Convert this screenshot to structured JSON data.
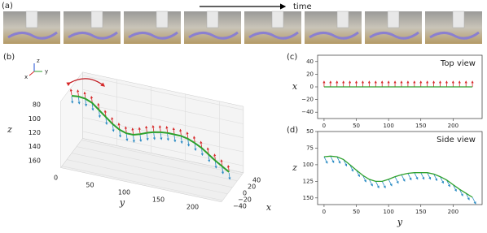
{
  "figure": {
    "panel_labels": [
      "(a)",
      "(b)",
      "(c)",
      "(d)"
    ],
    "time_label": "time",
    "orientation_labels": [
      "z",
      "y",
      "x"
    ]
  },
  "chart_data": [
    {
      "type": "line3d",
      "xlabel": "x",
      "ylabel": "y",
      "zlabel": "z",
      "color": "#2ca02c",
      "y": [
        0,
        10,
        20,
        30,
        40,
        50,
        60,
        70,
        80,
        90,
        100,
        110,
        120,
        130,
        140,
        150,
        160,
        170,
        180,
        190,
        200,
        210,
        220,
        230
      ],
      "x": [
        0,
        0,
        0,
        0,
        0,
        0,
        0,
        0,
        0,
        0,
        0,
        0,
        0,
        0,
        0,
        0,
        0,
        0,
        0,
        0,
        0,
        0,
        0,
        0
      ],
      "z": [
        88,
        87,
        88,
        92,
        100,
        108,
        116,
        122,
        125,
        125,
        122,
        118,
        115,
        113,
        112,
        112,
        112,
        114,
        118,
        123,
        130,
        137,
        143,
        149
      ],
      "xlim": [
        -45,
        45
      ],
      "xticks": [
        {
          "value": -40,
          "label": "−40"
        },
        {
          "value": -20,
          "label": "−20"
        },
        0,
        20,
        40
      ],
      "ylim": [
        0,
        235
      ],
      "yticks": [
        0,
        50,
        100,
        150,
        200
      ],
      "zlim": [
        75,
        170
      ],
      "zticks": [
        80,
        100,
        120,
        140,
        160
      ]
    },
    {
      "type": "line",
      "title": "Top view",
      "ylabel": "x",
      "color": "#2ca02c",
      "x": [
        0,
        10,
        20,
        30,
        40,
        50,
        60,
        70,
        80,
        90,
        100,
        110,
        120,
        130,
        140,
        150,
        160,
        170,
        180,
        190,
        200,
        210,
        220,
        230
      ],
      "values": [
        0,
        0,
        0,
        0,
        0,
        0,
        0,
        0,
        0,
        0,
        0,
        0,
        0,
        0,
        0,
        0,
        0,
        0,
        0,
        0,
        0,
        0,
        0,
        0
      ],
      "xlim": [
        -10,
        245
      ],
      "xticks": [
        0,
        50,
        100,
        150,
        200
      ],
      "ylim": [
        -50,
        50
      ],
      "yticks": [
        {
          "value": -40,
          "label": "−40"
        },
        {
          "value": -20,
          "label": "−20"
        },
        0,
        20,
        40
      ],
      "invert_y": false
    },
    {
      "type": "line",
      "title": "Side view",
      "ylabel": "z",
      "xlabel": "y",
      "color": "#2ca02c",
      "x": [
        0,
        10,
        20,
        30,
        40,
        50,
        60,
        70,
        80,
        90,
        100,
        110,
        120,
        130,
        140,
        150,
        160,
        170,
        180,
        190,
        200,
        210,
        220,
        230
      ],
      "values": [
        88,
        87,
        88,
        92,
        100,
        108,
        116,
        122,
        125,
        125,
        122,
        118,
        115,
        113,
        112,
        112,
        112,
        114,
        118,
        123,
        130,
        137,
        143,
        149
      ],
      "xlim": [
        -10,
        245
      ],
      "xticks": [
        0,
        50,
        100,
        150,
        200
      ],
      "ylim": [
        50,
        160
      ],
      "yticks": [
        50,
        75,
        100,
        125,
        150
      ],
      "invert_y": true
    }
  ]
}
